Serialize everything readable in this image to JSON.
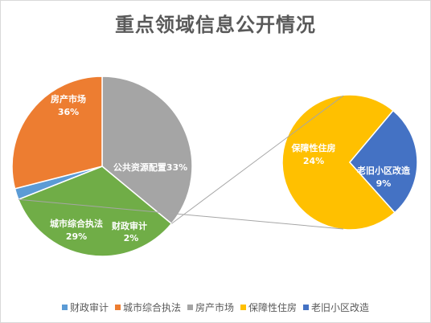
{
  "chart_data": {
    "type": "pie",
    "title": "重点领域信息公开情况",
    "categories": [
      "财政审计",
      "城市综合执法",
      "房产市场",
      "公共资源配置",
      "保障性住房",
      "老旧小区改造"
    ],
    "main_pie": [
      {
        "name": "房产市场",
        "value": 36,
        "label_name": "房产市场",
        "label_value": "36%",
        "color": "#a5a5a5"
      },
      {
        "name": "公共资源配置",
        "value": 33,
        "label_name": "公共资源配置",
        "label_value": "33%",
        "color": "#70ad47"
      },
      {
        "name": "财政审计",
        "value": 2,
        "label_name": "财政审计",
        "label_value": "2%",
        "color": "#5b9bd5"
      },
      {
        "name": "城市综合执法",
        "value": 29,
        "label_name": "城市综合执法",
        "label_value": "29%",
        "color": "#ed7d31"
      }
    ],
    "secondary_pie": [
      {
        "name": "保障性住房",
        "value": 24,
        "label_name": "保障性住房",
        "label_value": "24%",
        "color": "#ffc000"
      },
      {
        "name": "老旧小区改造",
        "value": 9,
        "label_name": "老旧小区改造",
        "label_value": "9%",
        "color": "#4472c4"
      }
    ],
    "legend": [
      {
        "label": "财政审计",
        "color": "#5b9bd5"
      },
      {
        "label": "城市综合执法",
        "color": "#ed7d31"
      },
      {
        "label": "房产市场",
        "color": "#a5a5a5"
      },
      {
        "label": "保障性住房",
        "color": "#ffc000"
      },
      {
        "label": "老旧小区改造",
        "color": "#4472c4"
      }
    ],
    "legend_position": "bottom"
  }
}
